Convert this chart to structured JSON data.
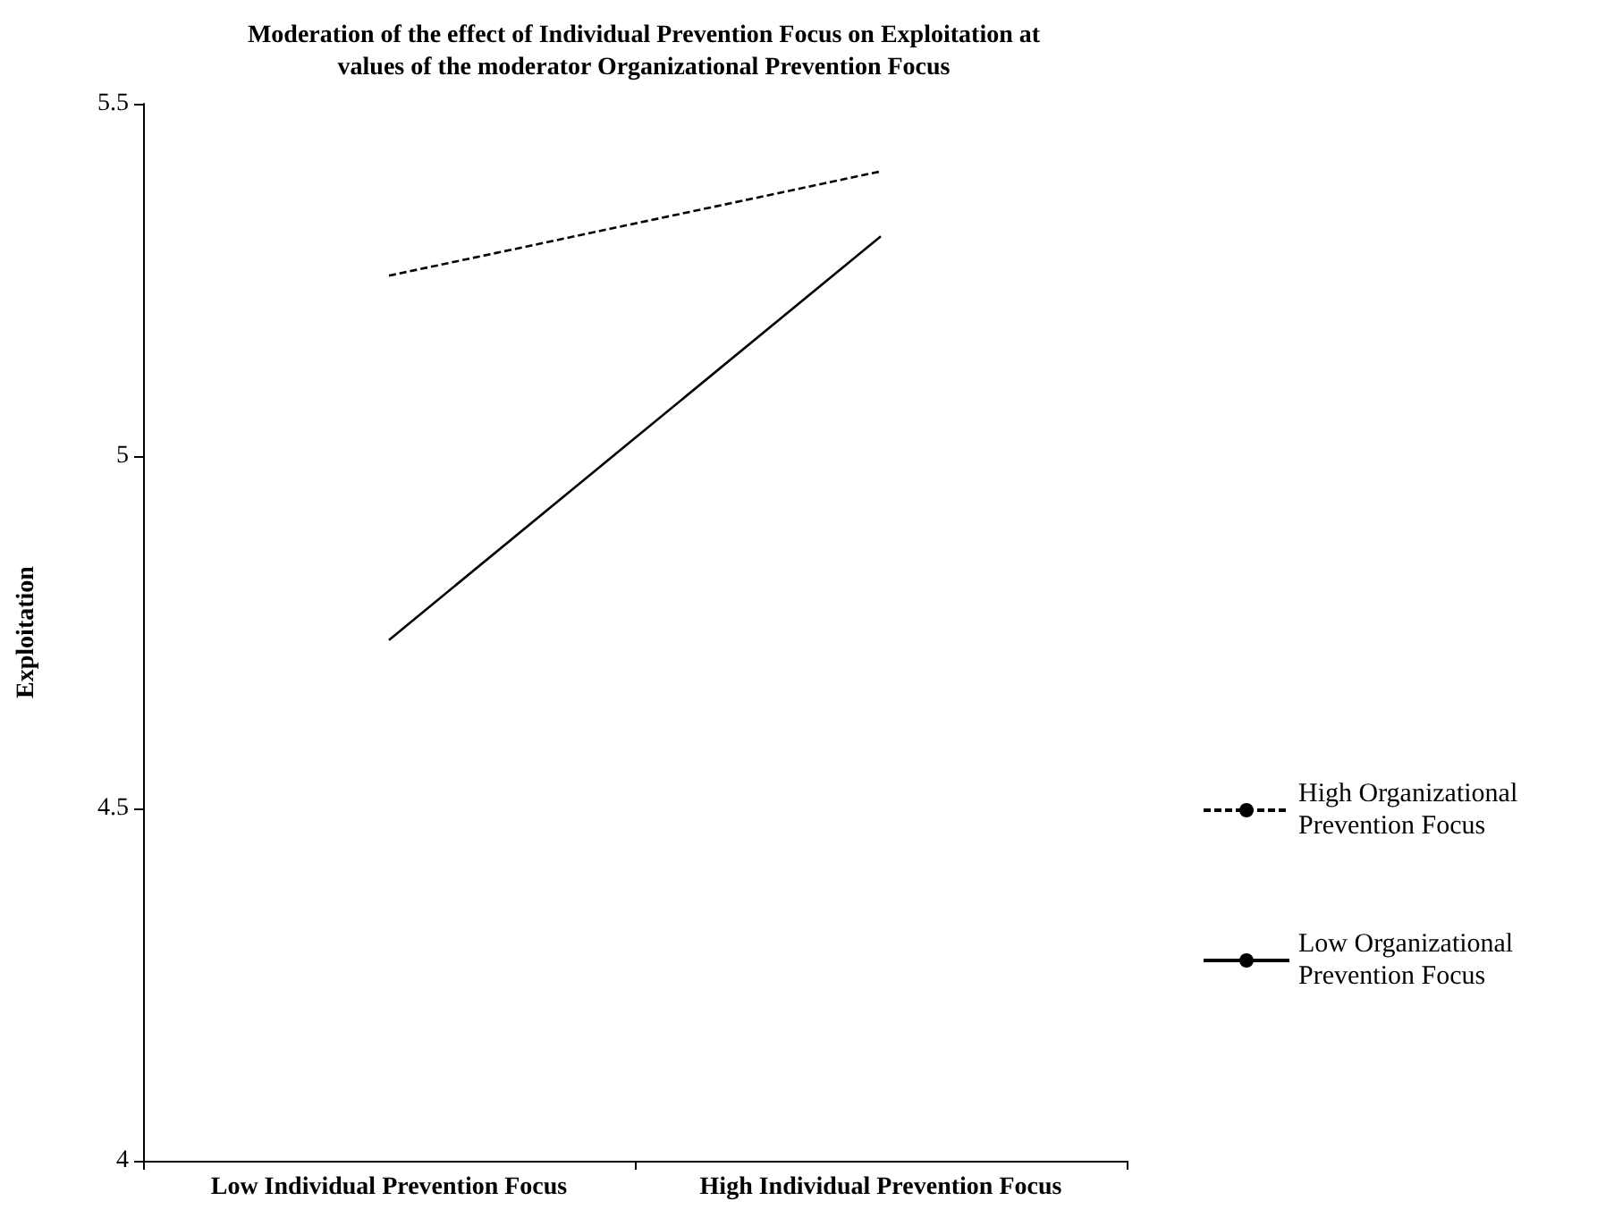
{
  "chart_data": {
    "type": "line",
    "title": "Moderation of the effect of Individual Prevention Focus on Exploitation at\nvalues of the moderator Organizational Prevention Focus",
    "ylabel": "Exploitation",
    "categories": [
      "Low Individual Prevention Focus",
      "High Individual Prevention Focus"
    ],
    "series": [
      {
        "name": "High Organizational Prevention Focus",
        "color": "#000000",
        "line_style": "dashed",
        "values": [
          5.256,
          5.404
        ]
      },
      {
        "name": "Low Organizational Prevention Focus",
        "color": "#000000",
        "line_style": "solid",
        "values": [
          4.739,
          5.312
        ]
      }
    ],
    "ylim": [
      4,
      5.5
    ],
    "yticks": [
      4,
      4.5,
      5,
      5.5
    ],
    "grid": false,
    "legend": "right",
    "marker": "none"
  }
}
